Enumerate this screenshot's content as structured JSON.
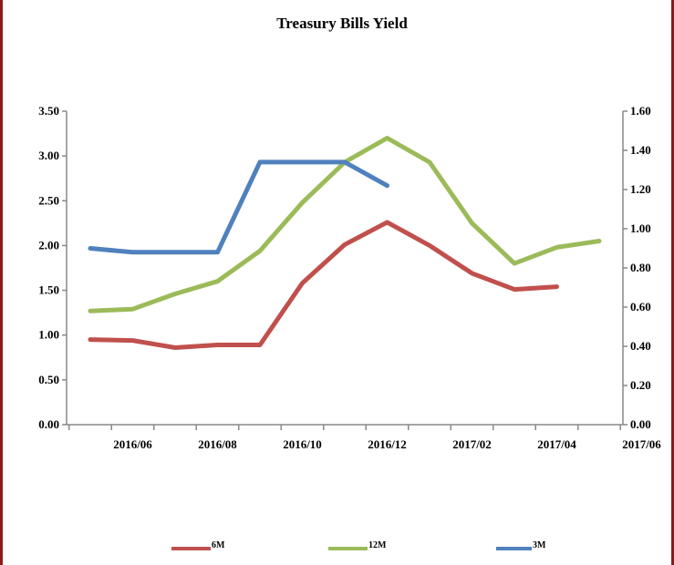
{
  "chart_data": {
    "type": "line",
    "title": "Treasury Bills Yield",
    "colors": {
      "6M": "#c0504d",
      "12M": "#9bbb59",
      "3M": "#4f81bd",
      "axis": "#888888",
      "frame": "#8b1a1a"
    },
    "x_tick_labels": [
      "2016/06",
      "2016/08",
      "2016/10",
      "2016/12",
      "2017/02",
      "2017/04",
      "2017/06"
    ],
    "x": [
      "2016/05",
      "2016/06",
      "2016/07",
      "2016/08",
      "2016/09",
      "2016/10",
      "2016/11",
      "2016/12",
      "2017/01",
      "2017/02",
      "2017/03",
      "2017/04",
      "2017/05",
      "2017/06"
    ],
    "y_left": {
      "ylim": [
        0,
        3.5
      ],
      "ticks": [
        "0.00",
        "0.50",
        "1.00",
        "1.50",
        "2.00",
        "2.50",
        "3.00",
        "3.50"
      ]
    },
    "y_right": {
      "ylim": [
        0,
        1.6
      ],
      "ticks": [
        "0.00",
        "0.20",
        "0.40",
        "0.60",
        "0.80",
        "1.00",
        "1.20",
        "1.40",
        "1.60"
      ]
    },
    "series": [
      {
        "name": "6M",
        "axis": "left",
        "color": "#c0504d",
        "values": [
          0.95,
          0.94,
          0.86,
          0.89,
          0.89,
          1.58,
          2.01,
          2.26,
          2.0,
          1.69,
          1.51,
          1.54,
          null,
          null
        ]
      },
      {
        "name": "12M",
        "axis": "left",
        "color": "#9bbb59",
        "values": [
          1.27,
          1.29,
          1.46,
          1.6,
          1.94,
          2.48,
          2.93,
          3.2,
          2.93,
          2.25,
          1.8,
          1.98,
          2.05,
          null
        ]
      },
      {
        "name": "3M",
        "axis": "right",
        "color": "#4f81bd",
        "values": [
          0.9,
          0.88,
          0.88,
          0.88,
          1.34,
          1.34,
          1.34,
          1.22,
          null,
          null,
          null,
          null,
          null,
          null
        ]
      }
    ],
    "legend": {
      "placement": "bottom",
      "entries": [
        "6M",
        "12M",
        "3M"
      ]
    },
    "grid": false
  }
}
